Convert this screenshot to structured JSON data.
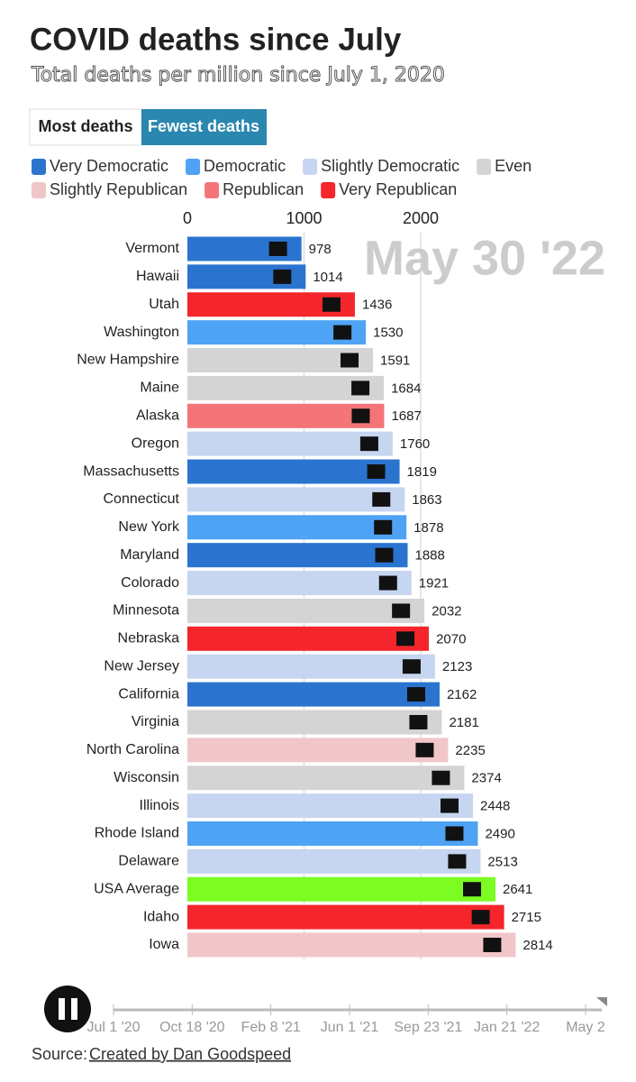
{
  "title": "COVID deaths since July",
  "subtitle": "Total deaths per million since July 1, 2020",
  "buttons": [
    "Most deaths",
    "Fewest deaths"
  ],
  "chart_data": {
    "type": "bar",
    "legend": [
      {
        "name": "Very Democratic",
        "color": "#2a74d0"
      },
      {
        "name": "Democratic",
        "color": "#4ea3f5"
      },
      {
        "name": "Slightly Democratic",
        "color": "#c6d5f0"
      },
      {
        "name": "Even",
        "color": "#d4d4d4"
      },
      {
        "name": "Slightly Republican",
        "color": "#f1c6c9"
      },
      {
        "name": "Republican",
        "color": "#f47478"
      },
      {
        "name": "Very Republican",
        "color": "#f5262b"
      }
    ],
    "categories": [
      "Vermont",
      "Hawaii",
      "Utah",
      "Washington",
      "New Hampshire",
      "Maine",
      "Alaska",
      "Oregon",
      "Massachusetts",
      "Connecticut",
      "New York",
      "Maryland",
      "Colorado",
      "Minnesota",
      "Nebraska",
      "New Jersey",
      "California",
      "Virginia",
      "North Carolina",
      "Wisconsin",
      "Illinois",
      "Rhode Island",
      "Delaware",
      "USA Average",
      "Idaho",
      "Iowa"
    ],
    "values": [
      978,
      1014,
      1436,
      1530,
      1591,
      1684,
      1687,
      1760,
      1819,
      1863,
      1878,
      1888,
      1921,
      2032,
      2070,
      2123,
      2162,
      2181,
      2235,
      2374,
      2448,
      2490,
      2513,
      2641,
      2715,
      2814
    ],
    "bar_colors": [
      "#2a74d0",
      "#2a74d0",
      "#f5262b",
      "#4ea3f5",
      "#d4d4d4",
      "#d4d4d4",
      "#f47478",
      "#c6d5f0",
      "#2a74d0",
      "#c6d5f0",
      "#4ea3f5",
      "#2a74d0",
      "#c6d5f0",
      "#d4d4d4",
      "#f5262b",
      "#c6d5f0",
      "#2a74d0",
      "#d4d4d4",
      "#f1c6c9",
      "#d4d4d4",
      "#c6d5f0",
      "#4ea3f5",
      "#c6d5f0",
      "#7cfc22",
      "#f5262b",
      "#f1c6c9"
    ],
    "xlim": [
      0,
      3000
    ],
    "xticks": [
      0,
      1000,
      2000
    ],
    "grid": true,
    "date_label": "May 30 '22"
  },
  "timeline": {
    "labels": [
      "Jul 1 '20",
      "Oct 18 '20",
      "Feb 8 '21",
      "Jun 1 '21",
      "Sep 23 '21",
      "Jan 21 '22",
      "May 2"
    ]
  },
  "source": {
    "label": "Source:",
    "link": "Created by Dan Goodspeed"
  }
}
